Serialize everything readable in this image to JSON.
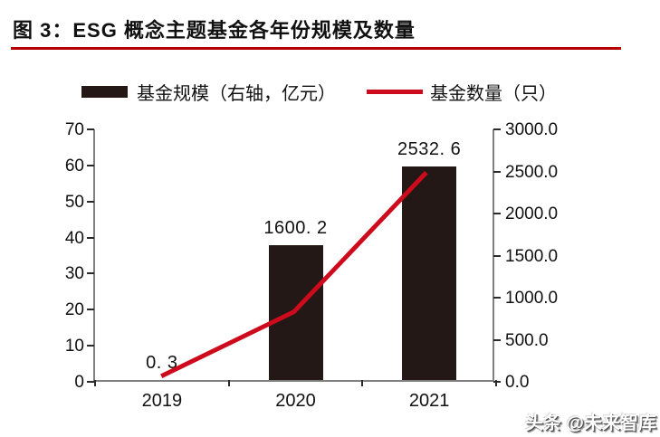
{
  "figure": {
    "title": "图 3：ESG 概念主题基金各年份规模及数量",
    "underline_color": "#b40000",
    "watermark": "头条 @未来智库"
  },
  "legend": {
    "bar_label": "基金规模（右轴，亿元）",
    "line_label": "基金数量（只）"
  },
  "colors": {
    "bar": "#231815",
    "line": "#ce0b1d",
    "axis": "#7f7f7f",
    "tick": "#2b2b2b",
    "text": "#111111"
  },
  "chart_data": {
    "type": "bar",
    "subtype": "combo-bar-line",
    "categories": [
      "2019",
      "2020",
      "2021"
    ],
    "series": [
      {
        "name": "基金规模（右轴，亿元）",
        "type": "bar",
        "axis": "right",
        "values": [
          0.3,
          1600.2,
          2532.6
        ],
        "labels": [
          "0. 3",
          "1600. 2",
          "2532. 6"
        ],
        "color": "#231815"
      },
      {
        "name": "基金数量（只）",
        "type": "line",
        "axis": "left",
        "values": [
          1,
          19,
          58
        ],
        "color": "#ce0b1d"
      }
    ],
    "title": "图 3：ESG 概念主题基金各年份规模及数量",
    "xlabel": "",
    "ylabel_left": "",
    "ylabel_right": "",
    "left_axis": {
      "min": 0,
      "max": 70,
      "ticks": [
        "0",
        "10",
        "20",
        "30",
        "40",
        "50",
        "60",
        "70"
      ]
    },
    "right_axis": {
      "min": 0,
      "max": 3000,
      "ticks": [
        "0.0",
        "500.0",
        "1000.0",
        "1500.0",
        "2000.0",
        "2500.0",
        "3000.0"
      ]
    },
    "grid": false,
    "legend_position": "top"
  }
}
